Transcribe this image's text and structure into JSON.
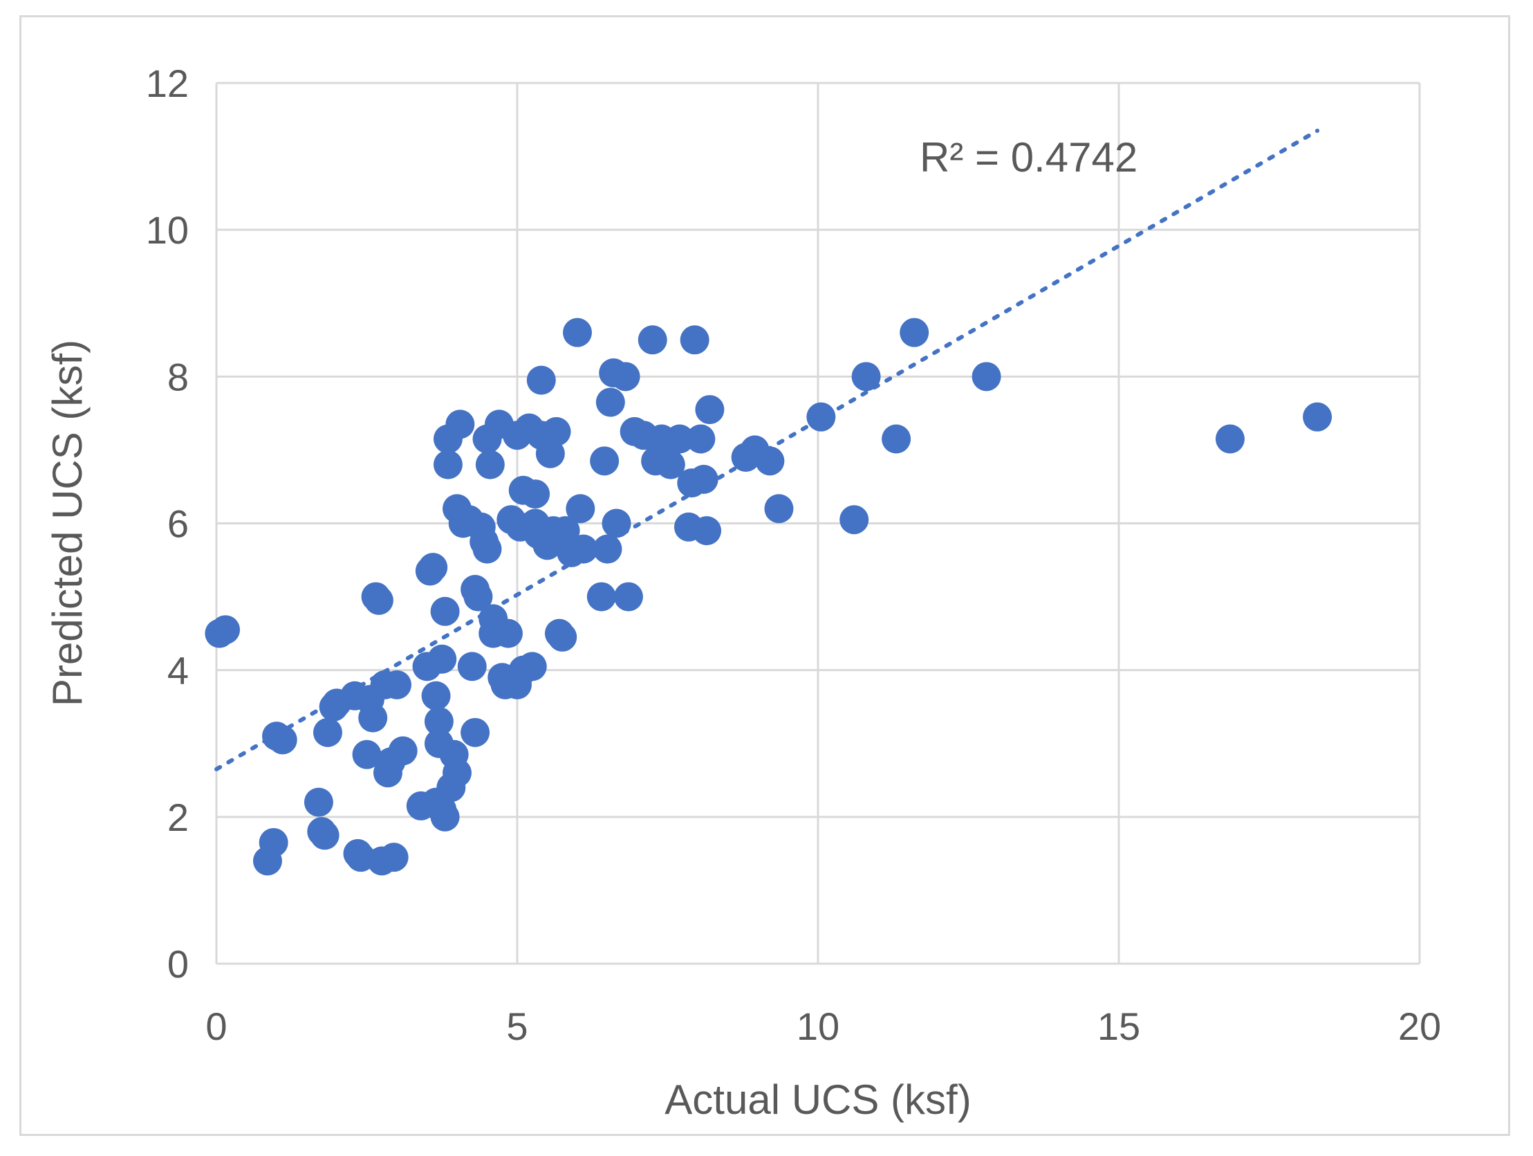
{
  "chart_data": {
    "type": "scatter",
    "xlabel": "Actual UCS (ksf)",
    "ylabel": "Predicted  UCS (ksf)",
    "xlim": [
      0,
      20
    ],
    "ylim": [
      0,
      12
    ],
    "x_ticks": [
      "0",
      "5",
      "10",
      "15",
      "20"
    ],
    "y_ticks": [
      "0",
      "2",
      "4",
      "6",
      "8",
      "10",
      "12"
    ],
    "grid": true,
    "annotation": "R² = 0.4742",
    "colors": {
      "points": "#4472C4",
      "trendline": "#4472C4",
      "grid": "#d9d9d9",
      "text": "#595959"
    },
    "trendline": {
      "style": "dotted",
      "x": [
        0,
        18.3
      ],
      "y": [
        2.65,
        11.35
      ]
    },
    "series": [
      {
        "x": [
          0.05,
          0.15,
          0.85,
          0.95,
          1.0,
          1.1,
          1.7,
          1.75,
          1.8,
          1.85,
          1.95,
          2.0,
          2.3,
          2.35,
          2.4,
          2.5,
          2.55,
          2.6,
          2.65,
          2.7,
          2.75,
          2.8,
          2.85,
          2.9,
          2.95,
          3.0,
          3.1,
          3.4,
          3.5,
          3.55,
          3.6,
          3.65,
          3.65,
          3.7,
          3.7,
          3.75,
          3.75,
          3.8,
          3.8,
          3.85,
          3.85,
          3.9,
          3.95,
          4.0,
          4.0,
          4.05,
          4.1,
          4.2,
          4.25,
          4.3,
          4.3,
          4.35,
          4.4,
          4.45,
          4.5,
          4.5,
          4.55,
          4.6,
          4.6,
          4.65,
          4.7,
          4.75,
          4.8,
          4.85,
          4.9,
          5.0,
          5.0,
          5.05,
          5.1,
          5.1,
          5.2,
          5.25,
          5.3,
          5.3,
          5.35,
          5.4,
          5.4,
          5.5,
          5.55,
          5.6,
          5.65,
          5.7,
          5.75,
          5.8,
          5.9,
          6.0,
          6.05,
          6.1,
          6.4,
          6.45,
          6.5,
          6.55,
          6.6,
          6.65,
          6.8,
          6.85,
          6.95,
          7.1,
          7.25,
          7.3,
          7.4,
          7.55,
          7.7,
          7.85,
          7.9,
          7.95,
          8.05,
          8.1,
          8.15,
          8.2,
          8.8,
          8.95,
          9.2,
          9.35,
          10.05,
          10.6,
          10.8,
          11.3,
          11.6,
          12.8,
          16.85,
          18.3
        ],
        "y": [
          4.5,
          4.55,
          1.4,
          1.65,
          3.1,
          3.05,
          2.2,
          1.8,
          1.75,
          3.15,
          3.5,
          3.55,
          3.65,
          1.5,
          1.45,
          2.85,
          3.6,
          3.35,
          5.0,
          4.95,
          1.4,
          3.8,
          2.6,
          2.75,
          1.45,
          3.8,
          2.9,
          2.15,
          4.05,
          5.35,
          5.4,
          2.2,
          3.65,
          3.3,
          3.0,
          4.15,
          2.1,
          4.8,
          2.0,
          7.15,
          6.8,
          2.4,
          2.85,
          6.2,
          2.6,
          7.35,
          6.0,
          6.05,
          4.05,
          3.15,
          5.1,
          5.0,
          5.95,
          5.75,
          5.65,
          7.15,
          6.8,
          4.7,
          4.5,
          4.55,
          7.35,
          3.9,
          3.8,
          4.5,
          6.05,
          3.8,
          7.2,
          5.95,
          6.45,
          4.0,
          7.3,
          4.05,
          6.4,
          6.0,
          5.85,
          7.95,
          7.2,
          5.7,
          6.95,
          5.9,
          7.25,
          4.5,
          4.45,
          5.9,
          5.6,
          8.6,
          6.2,
          5.65,
          5.0,
          6.85,
          5.65,
          7.65,
          8.05,
          6.0,
          8.0,
          5.0,
          7.25,
          7.2,
          8.5,
          6.85,
          7.15,
          6.8,
          7.15,
          5.95,
          6.55,
          8.5,
          7.15,
          6.6,
          5.9,
          7.55,
          6.9,
          7.0,
          6.85,
          6.2,
          7.45,
          6.05,
          8.0,
          7.15,
          8.6,
          8.0,
          7.15,
          7.45
        ]
      }
    ]
  }
}
